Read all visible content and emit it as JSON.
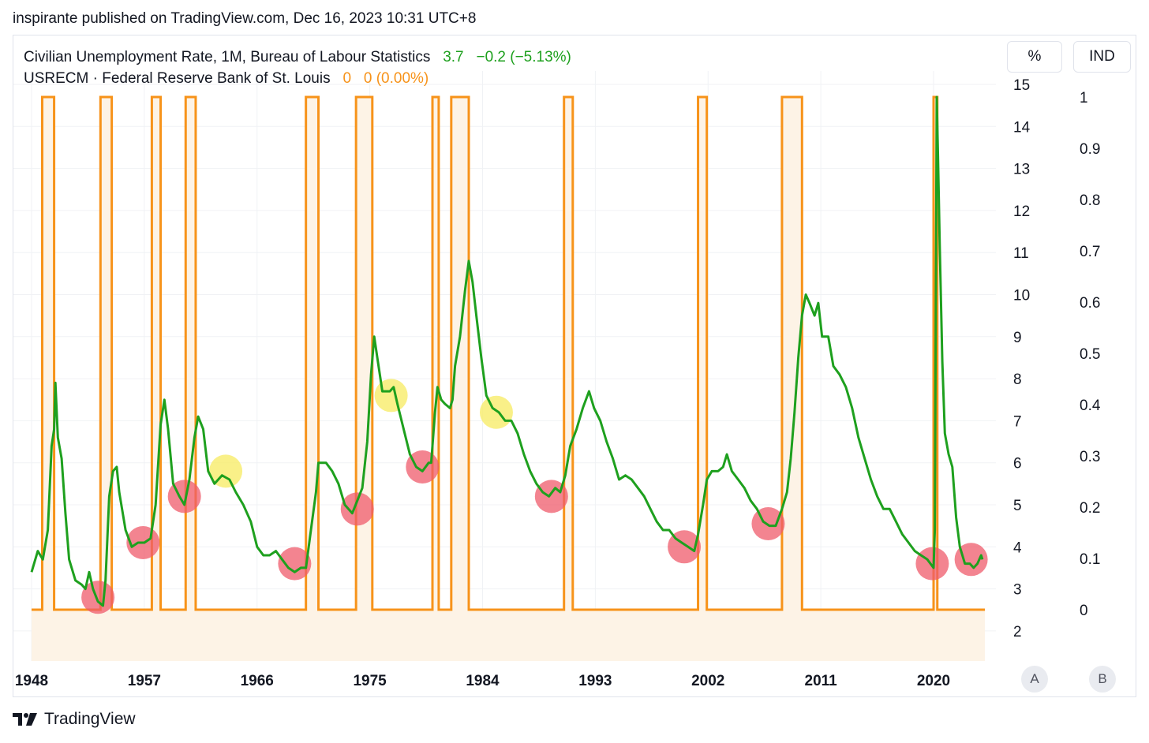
{
  "header": {
    "published": "inspirante published on TradingView.com, Dec 16, 2023 10:31 UTC+8"
  },
  "legend": {
    "series1_name": "Civilian Unemployment Rate, 1M, Bureau of Labour Statistics",
    "series1_value": "3.7",
    "series1_change": "−0.2 (−5.13%)",
    "series2_name": "USRECM · Federal Reserve Bank of St. Louis",
    "series2_value": "0",
    "series2_change": "0 (0.00%)"
  },
  "scale_buttons": {
    "left": "%",
    "right": "IND",
    "left_mode": "A",
    "right_mode": "B"
  },
  "brand": {
    "name": "TradingView"
  },
  "colors": {
    "unemployment": "#1ea01e",
    "recession": "#f7931a",
    "recession_fill": "#fdf3e6",
    "marker_red": "#ef5b6b",
    "marker_yellow": "#f7ec6a",
    "grid": "#f0f2f5"
  },
  "chart_data": {
    "type": "line",
    "x_axis": {
      "ticks": [
        "1948",
        "1957",
        "1966",
        "1975",
        "1984",
        "1993",
        "2002",
        "2011",
        "2020"
      ],
      "range": [
        1948,
        2024
      ]
    },
    "y_axis_left": {
      "unit": "%",
      "ticks": [
        "15",
        "14",
        "13",
        "12",
        "11",
        "10",
        "9",
        "8",
        "7",
        "6",
        "5",
        "4",
        "3",
        "2"
      ],
      "range": [
        1.3,
        15
      ]
    },
    "y_axis_right": {
      "unit": "IND",
      "ticks": [
        "1",
        "0.9",
        "0.8",
        "0.7",
        "0.6",
        "0.5",
        "0.4",
        "0.3",
        "0.2",
        "0.1",
        "0"
      ],
      "range": [
        0,
        1
      ]
    },
    "grid": true,
    "series": [
      {
        "name": "Civilian Unemployment Rate, 1M, Bureau of Labour Statistics",
        "axis": "left",
        "points": [
          [
            1948.0,
            3.4
          ],
          [
            1948.5,
            3.9
          ],
          [
            1948.9,
            3.7
          ],
          [
            1949.3,
            4.4
          ],
          [
            1949.6,
            6.4
          ],
          [
            1949.8,
            6.8
          ],
          [
            1949.9,
            7.9
          ],
          [
            1950.1,
            6.6
          ],
          [
            1950.4,
            6.1
          ],
          [
            1950.7,
            4.8
          ],
          [
            1951.0,
            3.7
          ],
          [
            1951.5,
            3.2
          ],
          [
            1952.0,
            3.1
          ],
          [
            1952.3,
            3.0
          ],
          [
            1952.6,
            3.4
          ],
          [
            1952.9,
            3.0
          ],
          [
            1953.3,
            2.7
          ],
          [
            1953.7,
            2.6
          ],
          [
            1953.9,
            3.2
          ],
          [
            1954.2,
            5.2
          ],
          [
            1954.5,
            5.8
          ],
          [
            1954.8,
            5.9
          ],
          [
            1955.0,
            5.3
          ],
          [
            1955.5,
            4.4
          ],
          [
            1956.0,
            4.0
          ],
          [
            1956.5,
            4.1
          ],
          [
            1957.0,
            4.1
          ],
          [
            1957.5,
            4.2
          ],
          [
            1957.9,
            5.0
          ],
          [
            1958.3,
            6.9
          ],
          [
            1958.6,
            7.5
          ],
          [
            1958.9,
            6.8
          ],
          [
            1959.3,
            5.5
          ],
          [
            1959.8,
            5.2
          ],
          [
            1960.2,
            5.0
          ],
          [
            1960.6,
            5.6
          ],
          [
            1961.0,
            6.6
          ],
          [
            1961.3,
            7.1
          ],
          [
            1961.7,
            6.8
          ],
          [
            1962.1,
            5.8
          ],
          [
            1962.6,
            5.5
          ],
          [
            1963.2,
            5.7
          ],
          [
            1963.8,
            5.6
          ],
          [
            1964.3,
            5.3
          ],
          [
            1964.9,
            5.0
          ],
          [
            1965.5,
            4.6
          ],
          [
            1966.0,
            4.0
          ],
          [
            1966.5,
            3.8
          ],
          [
            1967.0,
            3.8
          ],
          [
            1967.5,
            3.9
          ],
          [
            1968.0,
            3.7
          ],
          [
            1968.5,
            3.5
          ],
          [
            1969.0,
            3.4
          ],
          [
            1969.5,
            3.5
          ],
          [
            1969.9,
            3.5
          ],
          [
            1970.3,
            4.4
          ],
          [
            1970.7,
            5.3
          ],
          [
            1970.9,
            6.0
          ],
          [
            1971.5,
            6.0
          ],
          [
            1972.0,
            5.8
          ],
          [
            1972.5,
            5.5
          ],
          [
            1973.0,
            5.0
          ],
          [
            1973.6,
            4.8
          ],
          [
            1974.0,
            5.1
          ],
          [
            1974.4,
            5.4
          ],
          [
            1974.8,
            6.5
          ],
          [
            1975.1,
            8.1
          ],
          [
            1975.35,
            9.0
          ],
          [
            1975.6,
            8.5
          ],
          [
            1976.0,
            7.7
          ],
          [
            1976.6,
            7.7
          ],
          [
            1976.9,
            7.8
          ],
          [
            1977.2,
            7.4
          ],
          [
            1977.7,
            6.8
          ],
          [
            1978.2,
            6.2
          ],
          [
            1978.7,
            5.9
          ],
          [
            1979.2,
            5.8
          ],
          [
            1979.7,
            6.0
          ],
          [
            1979.9,
            6.0
          ],
          [
            1980.2,
            7.2
          ],
          [
            1980.4,
            7.8
          ],
          [
            1980.7,
            7.5
          ],
          [
            1981.0,
            7.4
          ],
          [
            1981.4,
            7.3
          ],
          [
            1981.6,
            7.5
          ],
          [
            1981.8,
            8.3
          ],
          [
            1982.2,
            9.0
          ],
          [
            1982.6,
            10.1
          ],
          [
            1982.9,
            10.8
          ],
          [
            1983.2,
            10.3
          ],
          [
            1983.5,
            9.5
          ],
          [
            1983.9,
            8.5
          ],
          [
            1984.3,
            7.6
          ],
          [
            1984.8,
            7.3
          ],
          [
            1985.3,
            7.2
          ],
          [
            1985.8,
            7.0
          ],
          [
            1986.3,
            7.0
          ],
          [
            1986.8,
            6.7
          ],
          [
            1987.3,
            6.2
          ],
          [
            1987.8,
            5.8
          ],
          [
            1988.3,
            5.5
          ],
          [
            1988.8,
            5.3
          ],
          [
            1989.3,
            5.2
          ],
          [
            1989.8,
            5.4
          ],
          [
            1990.2,
            5.3
          ],
          [
            1990.6,
            5.7
          ],
          [
            1991.0,
            6.4
          ],
          [
            1991.5,
            6.8
          ],
          [
            1992.0,
            7.3
          ],
          [
            1992.5,
            7.7
          ],
          [
            1992.9,
            7.3
          ],
          [
            1993.4,
            7.0
          ],
          [
            1993.9,
            6.5
          ],
          [
            1994.4,
            6.1
          ],
          [
            1994.9,
            5.6
          ],
          [
            1995.4,
            5.7
          ],
          [
            1995.9,
            5.6
          ],
          [
            1996.4,
            5.4
          ],
          [
            1996.9,
            5.2
          ],
          [
            1997.4,
            4.9
          ],
          [
            1997.9,
            4.6
          ],
          [
            1998.4,
            4.4
          ],
          [
            1998.9,
            4.4
          ],
          [
            1999.4,
            4.2
          ],
          [
            1999.9,
            4.1
          ],
          [
            2000.4,
            4.0
          ],
          [
            2000.9,
            3.9
          ],
          [
            2001.2,
            4.3
          ],
          [
            2001.6,
            5.0
          ],
          [
            2001.9,
            5.6
          ],
          [
            2002.3,
            5.8
          ],
          [
            2002.8,
            5.8
          ],
          [
            2003.2,
            5.9
          ],
          [
            2003.5,
            6.2
          ],
          [
            2003.9,
            5.8
          ],
          [
            2004.4,
            5.6
          ],
          [
            2004.9,
            5.4
          ],
          [
            2005.4,
            5.1
          ],
          [
            2005.9,
            4.9
          ],
          [
            2006.4,
            4.6
          ],
          [
            2006.9,
            4.5
          ],
          [
            2007.4,
            4.5
          ],
          [
            2007.9,
            4.9
          ],
          [
            2008.3,
            5.3
          ],
          [
            2008.6,
            6.1
          ],
          [
            2008.9,
            7.2
          ],
          [
            2009.2,
            8.5
          ],
          [
            2009.5,
            9.5
          ],
          [
            2009.8,
            10.0
          ],
          [
            2010.1,
            9.8
          ],
          [
            2010.5,
            9.5
          ],
          [
            2010.8,
            9.8
          ],
          [
            2011.1,
            9.0
          ],
          [
            2011.6,
            9.0
          ],
          [
            2012.0,
            8.3
          ],
          [
            2012.5,
            8.1
          ],
          [
            2013.0,
            7.8
          ],
          [
            2013.5,
            7.3
          ],
          [
            2014.0,
            6.6
          ],
          [
            2014.5,
            6.1
          ],
          [
            2015.0,
            5.6
          ],
          [
            2015.5,
            5.2
          ],
          [
            2016.0,
            4.9
          ],
          [
            2016.5,
            4.9
          ],
          [
            2017.0,
            4.6
          ],
          [
            2017.5,
            4.3
          ],
          [
            2018.0,
            4.1
          ],
          [
            2018.5,
            3.9
          ],
          [
            2019.0,
            3.8
          ],
          [
            2019.5,
            3.7
          ],
          [
            2020.0,
            3.5
          ],
          [
            2020.1,
            4.4
          ],
          [
            2020.25,
            14.7
          ],
          [
            2020.35,
            13.3
          ],
          [
            2020.5,
            11.1
          ],
          [
            2020.7,
            8.4
          ],
          [
            2020.9,
            6.7
          ],
          [
            2021.2,
            6.2
          ],
          [
            2021.5,
            5.9
          ],
          [
            2021.8,
            4.7
          ],
          [
            2022.1,
            4.0
          ],
          [
            2022.5,
            3.6
          ],
          [
            2022.9,
            3.6
          ],
          [
            2023.2,
            3.5
          ],
          [
            2023.5,
            3.6
          ],
          [
            2023.8,
            3.8
          ],
          [
            2023.9,
            3.7
          ]
        ]
      },
      {
        "name": "USRECM · Federal Reserve Bank of St. Louis",
        "axis": "right",
        "recession_periods": [
          [
            1948.85,
            1949.8
          ],
          [
            1953.5,
            1954.4
          ],
          [
            1957.6,
            1958.3
          ],
          [
            1960.3,
            1961.1
          ],
          [
            1969.9,
            1970.9
          ],
          [
            1973.9,
            1975.2
          ],
          [
            1980.0,
            1980.5
          ],
          [
            1981.5,
            1982.9
          ],
          [
            1990.5,
            1991.2
          ],
          [
            2001.2,
            2001.9
          ],
          [
            2007.9,
            2009.5
          ],
          [
            2020.0,
            2020.3
          ]
        ]
      }
    ],
    "markers": {
      "red": [
        [
          1953.3,
          2.8
        ],
        [
          1956.9,
          4.1
        ],
        [
          1960.2,
          5.2
        ],
        [
          1969.0,
          3.6
        ],
        [
          1974.0,
          4.9
        ],
        [
          1979.2,
          5.9
        ],
        [
          1989.5,
          5.2
        ],
        [
          2000.1,
          4.0
        ],
        [
          2006.8,
          4.55
        ],
        [
          2019.9,
          3.6
        ],
        [
          2023.0,
          3.7
        ]
      ],
      "yellow": [
        [
          1963.5,
          5.8
        ],
        [
          1976.7,
          7.6
        ],
        [
          1985.1,
          7.2
        ]
      ]
    }
  }
}
